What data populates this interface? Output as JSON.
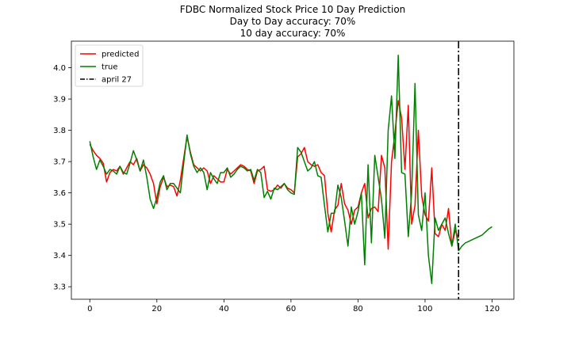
{
  "chart_data": {
    "type": "line",
    "title_lines": [
      "FDBC Normalized Stock Price 10 Day Prediction",
      "Day to Day accuracy: 70%",
      "10 day accuracy: 70%"
    ],
    "xlabel": "",
    "ylabel": "",
    "xlim": [
      -5.5,
      126.5
    ],
    "ylim": [
      3.26,
      4.085
    ],
    "x_ticks": [
      0,
      20,
      40,
      60,
      80,
      100,
      120
    ],
    "y_ticks": [
      3.3,
      3.4,
      3.5,
      3.6,
      3.7,
      3.8,
      3.9,
      4.0
    ],
    "y_tick_labels": [
      "3.3",
      "3.4",
      "3.5",
      "3.6",
      "3.7",
      "3.8",
      "3.9",
      "4.0"
    ],
    "grid": false,
    "legend_position": "top-left",
    "vline": {
      "x": 110,
      "label": "april 27",
      "style": "dash-dot",
      "color": "#000000"
    },
    "series": [
      {
        "name": "predicted",
        "color": "#ff0000",
        "x": [
          0,
          1,
          2,
          3,
          4,
          5,
          6,
          7,
          8,
          9,
          10,
          11,
          12,
          13,
          14,
          15,
          16,
          17,
          18,
          19,
          20,
          21,
          22,
          23,
          24,
          25,
          26,
          27,
          28,
          29,
          30,
          31,
          32,
          33,
          34,
          35,
          36,
          37,
          38,
          39,
          40,
          41,
          42,
          43,
          44,
          45,
          46,
          47,
          48,
          49,
          50,
          51,
          52,
          53,
          54,
          55,
          56,
          57,
          58,
          59,
          60,
          61,
          62,
          63,
          64,
          65,
          66,
          67,
          68,
          69,
          70,
          71,
          72,
          73,
          74,
          75,
          76,
          77,
          78,
          79,
          80,
          81,
          82,
          83,
          84,
          85,
          86,
          87,
          88,
          89,
          90,
          91,
          92,
          93,
          94,
          95,
          96,
          97,
          98,
          99,
          100,
          101,
          102,
          103,
          104,
          105,
          106,
          107,
          108,
          109,
          110
        ],
        "values": [
          3.755,
          3.735,
          3.72,
          3.71,
          3.695,
          3.635,
          3.665,
          3.675,
          3.67,
          3.685,
          3.66,
          3.68,
          3.7,
          3.69,
          3.71,
          3.67,
          3.69,
          3.68,
          3.66,
          3.63,
          3.565,
          3.62,
          3.65,
          3.62,
          3.625,
          3.62,
          3.59,
          3.64,
          3.71,
          3.78,
          3.73,
          3.69,
          3.68,
          3.67,
          3.68,
          3.67,
          3.63,
          3.655,
          3.645,
          3.635,
          3.635,
          3.675,
          3.66,
          3.67,
          3.68,
          3.69,
          3.685,
          3.675,
          3.67,
          3.63,
          3.67,
          3.675,
          3.685,
          3.61,
          3.605,
          3.61,
          3.625,
          3.615,
          3.63,
          3.615,
          3.61,
          3.6,
          3.715,
          3.725,
          3.745,
          3.7,
          3.69,
          3.685,
          3.69,
          3.665,
          3.655,
          3.535,
          3.475,
          3.545,
          3.56,
          3.63,
          3.565,
          3.545,
          3.5,
          3.545,
          3.555,
          3.6,
          3.63,
          3.52,
          3.55,
          3.555,
          3.54,
          3.72,
          3.68,
          3.42,
          3.7,
          3.79,
          3.895,
          3.84,
          3.675,
          3.88,
          3.5,
          3.56,
          3.8,
          3.59,
          3.53,
          3.51,
          3.68,
          3.47,
          3.46,
          3.5,
          3.48,
          3.55,
          3.43,
          3.48,
          3.455
        ]
      },
      {
        "name": "true",
        "color": "#008000",
        "x": [
          0,
          1,
          2,
          3,
          4,
          5,
          6,
          7,
          8,
          9,
          10,
          11,
          12,
          13,
          14,
          15,
          16,
          17,
          18,
          19,
          20,
          21,
          22,
          23,
          24,
          25,
          26,
          27,
          28,
          29,
          30,
          31,
          32,
          33,
          34,
          35,
          36,
          37,
          38,
          39,
          40,
          41,
          42,
          43,
          44,
          45,
          46,
          47,
          48,
          49,
          50,
          51,
          52,
          53,
          54,
          55,
          56,
          57,
          58,
          59,
          60,
          61,
          62,
          63,
          64,
          65,
          66,
          67,
          68,
          69,
          70,
          71,
          72,
          73,
          74,
          75,
          76,
          77,
          78,
          79,
          80,
          81,
          82,
          83,
          84,
          85,
          86,
          87,
          88,
          89,
          90,
          91,
          92,
          93,
          94,
          95,
          96,
          97,
          98,
          99,
          100,
          101,
          102,
          103,
          104,
          105,
          106,
          107,
          108,
          109,
          110,
          111,
          112,
          113,
          114,
          115,
          116,
          117,
          118,
          119,
          120
        ],
        "values": [
          3.765,
          3.715,
          3.675,
          3.705,
          3.685,
          3.66,
          3.675,
          3.67,
          3.66,
          3.685,
          3.665,
          3.66,
          3.695,
          3.735,
          3.705,
          3.67,
          3.705,
          3.65,
          3.58,
          3.55,
          3.585,
          3.635,
          3.655,
          3.61,
          3.63,
          3.63,
          3.615,
          3.6,
          3.695,
          3.785,
          3.725,
          3.685,
          3.665,
          3.68,
          3.665,
          3.61,
          3.665,
          3.645,
          3.63,
          3.665,
          3.665,
          3.68,
          3.65,
          3.66,
          3.675,
          3.685,
          3.68,
          3.67,
          3.675,
          3.64,
          3.675,
          3.665,
          3.585,
          3.605,
          3.58,
          3.615,
          3.61,
          3.62,
          3.63,
          3.61,
          3.6,
          3.595,
          3.745,
          3.73,
          3.7,
          3.67,
          3.68,
          3.7,
          3.655,
          3.65,
          3.56,
          3.475,
          3.535,
          3.535,
          3.625,
          3.585,
          3.51,
          3.43,
          3.555,
          3.5,
          3.54,
          3.6,
          3.37,
          3.69,
          3.44,
          3.72,
          3.65,
          3.58,
          3.455,
          3.8,
          3.91,
          3.71,
          4.04,
          3.665,
          3.66,
          3.46,
          3.6,
          3.95,
          3.53,
          3.48,
          3.6,
          3.4,
          3.31,
          3.52,
          3.48,
          3.5,
          3.52,
          3.47,
          3.43,
          3.5,
          3.415,
          3.43,
          3.44,
          3.445,
          3.45,
          3.455,
          3.46,
          3.465,
          3.475,
          3.485,
          3.492
        ]
      }
    ]
  }
}
